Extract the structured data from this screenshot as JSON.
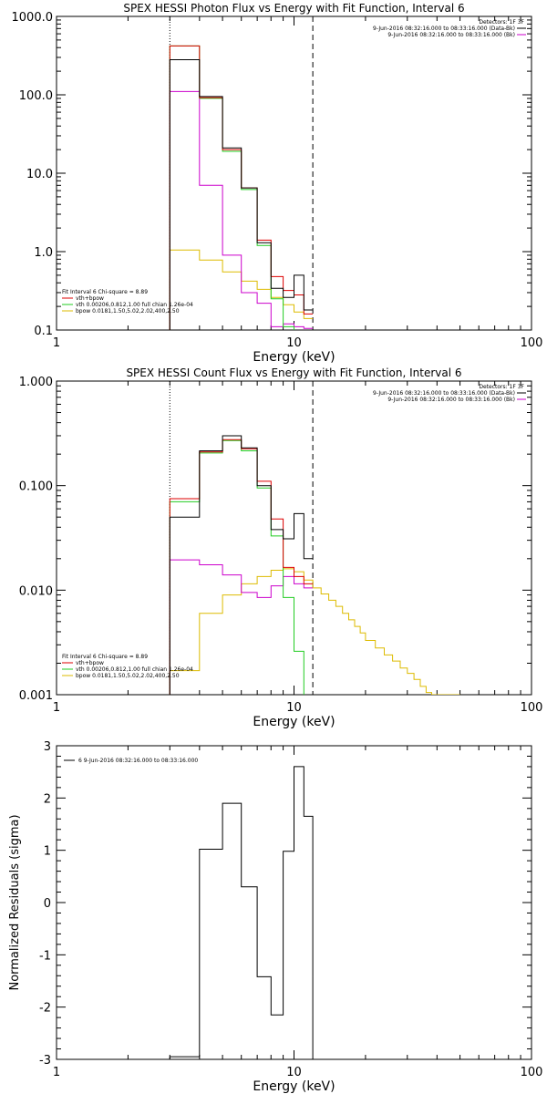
{
  "colors": {
    "total": "#000000",
    "fit": "#dd0000",
    "vth": "#22cc22",
    "bpow": "#ddbb00",
    "bkg": "#cc00cc"
  },
  "chart_data": [
    {
      "type": "line",
      "title": "SPEX HESSI Photon Flux vs Energy with Fit Function, Interval 6",
      "xlabel": "Energy (keV)",
      "ylabel": "",
      "xlog": true,
      "ylog": true,
      "xlim": [
        1,
        100
      ],
      "ylim": [
        0.1,
        1000
      ],
      "xticks": [
        "1",
        "10",
        "100"
      ],
      "yticks": [
        "0.1",
        "1.0",
        "10.0",
        "100.0",
        "1000.0"
      ],
      "legend_tr": [
        "Detectors: 1F 3F",
        "9-Jun-2016 08:32:16.000 to 08:33:16.000 (Data-Bk)",
        "9-Jun-2016 08:32:16.000 to 08:33:16.000 (Bk)"
      ],
      "legend_bl": [
        "Fit Interval 6   Chi-square = 8.89",
        "vth+bpow",
        "vth 0.00206,0.812,1.00  full chian 1.26e-04",
        "bpow 0.0181,1.50,5.02,2.02,400,2.50"
      ],
      "vlines": [
        {
          "x": 3.0,
          "style": "dotted"
        },
        {
          "x": 12.0,
          "style": "dashed"
        }
      ],
      "edges": [
        3.0,
        4.0,
        5.0,
        6.0,
        7.0,
        8.0,
        9.0,
        10.0,
        11.0,
        12.0
      ],
      "series": [
        {
          "name": "bpow",
          "color": "#ddbb00",
          "values": [
            1.05,
            0.78,
            0.55,
            0.42,
            0.33,
            0.26,
            0.21,
            0.17,
            0.14
          ]
        },
        {
          "name": "Bk",
          "color": "#cc00cc",
          "values": [
            110,
            7.0,
            0.9,
            0.3,
            0.22,
            0.11,
            0.12,
            0.11,
            0.105
          ]
        },
        {
          "name": "vth",
          "color": "#22cc22",
          "values": [
            420,
            90,
            19,
            6.2,
            1.2,
            0.25,
            0.11,
            0.09,
            0.09
          ]
        },
        {
          "name": "vth+bpow",
          "color": "#dd0000",
          "values": [
            420,
            92,
            20,
            6.5,
            1.4,
            0.48,
            0.32,
            0.28,
            0.16
          ]
        },
        {
          "name": "Data-Bk",
          "color": "#000000",
          "values": [
            280,
            95,
            21,
            6.5,
            1.3,
            0.34,
            0.26,
            0.5,
            0.18
          ]
        }
      ]
    },
    {
      "type": "line",
      "title": "SPEX HESSI Count Flux vs Energy with Fit Function, Interval 6",
      "xlabel": "Energy (keV)",
      "ylabel": "",
      "xlog": true,
      "ylog": true,
      "xlim": [
        1,
        100
      ],
      "ylim": [
        0.001,
        1.0
      ],
      "xticks": [
        "1",
        "10",
        "100"
      ],
      "yticks": [
        "0.001",
        "0.010",
        "0.100",
        "1.000"
      ],
      "legend_tr": [
        "Detectors: 1F 3F",
        "9-Jun-2016 08:32:16.000 to 08:33:16.000 (Data-Bk)",
        "9-Jun-2016 08:32:16.000 to 08:33:16.000 (Bk)"
      ],
      "legend_bl": [
        "Fit Interval 6   Chi-square = 8.89",
        "vth+bpow",
        "vth 0.00206,0.812,1.00  full chian 1.26e-04",
        "bpow 0.0181,1.50,5.02,2.02,400,2.50"
      ],
      "vlines": [
        {
          "x": 3.0,
          "style": "dotted"
        },
        {
          "x": 12.0,
          "style": "dashed"
        }
      ],
      "edges": [
        3.0,
        4.0,
        5.0,
        6.0,
        7.0,
        8.0,
        9.0,
        10.0,
        11.0,
        12.0
      ],
      "bpow_edges": [
        3,
        4,
        5,
        6,
        7,
        8,
        9,
        10,
        11,
        12,
        13,
        14,
        15,
        16,
        17,
        18,
        19,
        20,
        22,
        24,
        26,
        28,
        30,
        32,
        34,
        36,
        38,
        40,
        43,
        46,
        50
      ],
      "series": [
        {
          "name": "bpow",
          "color": "#ddbb00",
          "bpow": true,
          "values": [
            0.0017,
            0.006,
            0.009,
            0.0115,
            0.0135,
            0.0155,
            0.016,
            0.015,
            0.0125,
            0.0105,
            0.0092,
            0.008,
            0.007,
            0.006,
            0.0052,
            0.0045,
            0.0039,
            0.0033,
            0.0028,
            0.0024,
            0.0021,
            0.0018,
            0.0016,
            0.0014,
            0.0012,
            0.00105,
            0.001,
            0.001,
            0.001,
            0.001
          ]
        },
        {
          "name": "Bk",
          "color": "#cc00cc",
          "values": [
            0.0195,
            0.0175,
            0.014,
            0.0095,
            0.0085,
            0.011,
            0.0135,
            0.0115,
            0.0105
          ]
        },
        {
          "name": "vth",
          "color": "#22cc22",
          "values": [
            0.07,
            0.205,
            0.27,
            0.215,
            0.095,
            0.033,
            0.0085,
            0.0026,
            0.0008
          ]
        },
        {
          "name": "vth+bpow",
          "color": "#dd0000",
          "values": [
            0.075,
            0.21,
            0.275,
            0.225,
            0.11,
            0.048,
            0.0165,
            0.0135,
            0.0115
          ]
        },
        {
          "name": "Data-Bk",
          "color": "#000000",
          "values": [
            0.05,
            0.215,
            0.3,
            0.23,
            0.1,
            0.038,
            0.031,
            0.054,
            0.02
          ]
        }
      ]
    },
    {
      "type": "line",
      "title": "",
      "xlabel": "Energy (keV)",
      "ylabel": "Normalized Residuals (sigma)",
      "xlog": true,
      "ylog": false,
      "xlim": [
        1,
        100
      ],
      "ylim": [
        -3,
        3
      ],
      "xticks": [
        "1",
        "10",
        "100"
      ],
      "yticks": [
        "-3",
        "-2",
        "-1",
        "0",
        "1",
        "2",
        "3"
      ],
      "legend_tl": [
        "6  9-Jun-2016 08:32:16.000 to 08:33:16.000"
      ],
      "edges": [
        3.0,
        4.0,
        5.0,
        6.0,
        7.0,
        8.0,
        9.0,
        10.0,
        11.0,
        12.0
      ],
      "series": [
        {
          "name": "",
          "color": "#000000",
          "values": [
            -2.95,
            1.02,
            1.9,
            0.3,
            -1.42,
            -2.15,
            0.98,
            2.6,
            1.65
          ],
          "drop_to_bottom": true
        }
      ]
    }
  ]
}
